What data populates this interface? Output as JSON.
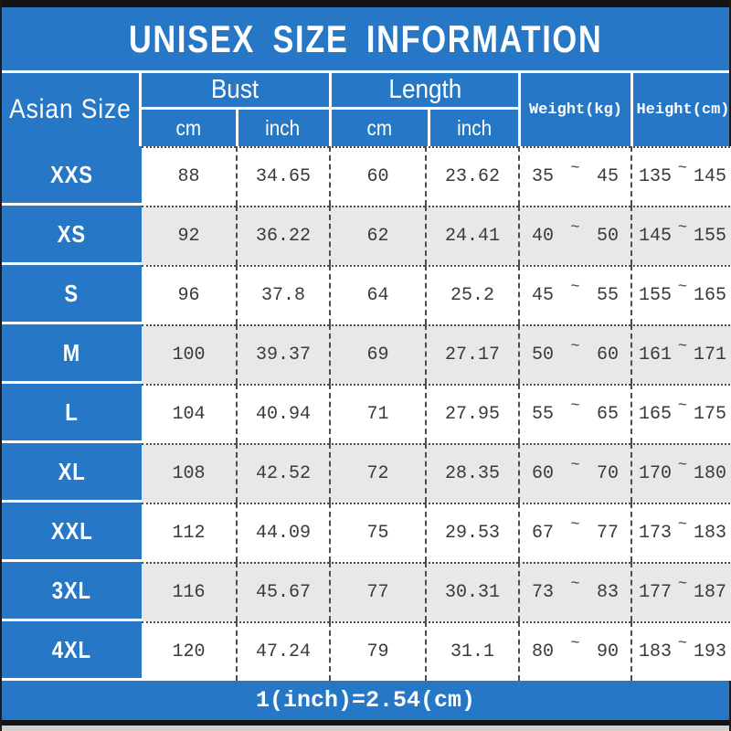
{
  "title": "UNISEX SIZE INFORMATION",
  "header": {
    "size_col": "Asian Size",
    "bust_label": "Bust",
    "length_label": "Length",
    "cm": "cm",
    "inch": "inch",
    "weight": "Weight(kg)",
    "height": "Height(cm)"
  },
  "tilde": "~",
  "rows": [
    {
      "size": "XXS",
      "bust_cm": "88",
      "bust_inch": "34.65",
      "length_cm": "60",
      "length_inch": "23.62",
      "weight_min": "35",
      "weight_max": "45",
      "height_min": "135",
      "height_max": "145"
    },
    {
      "size": "XS",
      "bust_cm": "92",
      "bust_inch": "36.22",
      "length_cm": "62",
      "length_inch": "24.41",
      "weight_min": "40",
      "weight_max": "50",
      "height_min": "145",
      "height_max": "155"
    },
    {
      "size": "S",
      "bust_cm": "96",
      "bust_inch": "37.8",
      "length_cm": "64",
      "length_inch": "25.2",
      "weight_min": "45",
      "weight_max": "55",
      "height_min": "155",
      "height_max": "165"
    },
    {
      "size": "M",
      "bust_cm": "100",
      "bust_inch": "39.37",
      "length_cm": "69",
      "length_inch": "27.17",
      "weight_min": "50",
      "weight_max": "60",
      "height_min": "161",
      "height_max": "171"
    },
    {
      "size": "L",
      "bust_cm": "104",
      "bust_inch": "40.94",
      "length_cm": "71",
      "length_inch": "27.95",
      "weight_min": "55",
      "weight_max": "65",
      "height_min": "165",
      "height_max": "175"
    },
    {
      "size": "XL",
      "bust_cm": "108",
      "bust_inch": "42.52",
      "length_cm": "72",
      "length_inch": "28.35",
      "weight_min": "60",
      "weight_max": "70",
      "height_min": "170",
      "height_max": "180"
    },
    {
      "size": "XXL",
      "bust_cm": "112",
      "bust_inch": "44.09",
      "length_cm": "75",
      "length_inch": "29.53",
      "weight_min": "67",
      "weight_max": "77",
      "height_min": "173",
      "height_max": "183"
    },
    {
      "size": "3XL",
      "bust_cm": "116",
      "bust_inch": "45.67",
      "length_cm": "77",
      "length_inch": "30.31",
      "weight_min": "73",
      "weight_max": "83",
      "height_min": "177",
      "height_max": "187"
    },
    {
      "size": "4XL",
      "bust_cm": "120",
      "bust_inch": "47.24",
      "length_cm": "79",
      "length_inch": "31.1",
      "weight_min": "80",
      "weight_max": "90",
      "height_min": "183",
      "height_max": "193"
    }
  ],
  "footer_note": "1(inch)=2.54(cm)",
  "colors": {
    "blue": "#2678c6",
    "row_alt": "#e8e8e8",
    "bar_black": "#141414",
    "data_text": "#3a3a3a",
    "white": "#ffffff"
  },
  "chart_data": {
    "type": "table",
    "title": "UNISEX SIZE INFORMATION",
    "columns": [
      "Asian Size",
      "Bust cm",
      "Bust inch",
      "Length cm",
      "Length inch",
      "Weight(kg)",
      "Height(cm)"
    ],
    "rows": [
      [
        "XXS",
        88,
        34.65,
        60,
        23.62,
        "35~45",
        "135~145"
      ],
      [
        "XS",
        92,
        36.22,
        62,
        24.41,
        "40~50",
        "145~155"
      ],
      [
        "S",
        96,
        37.8,
        64,
        25.2,
        "45~55",
        "155~165"
      ],
      [
        "M",
        100,
        39.37,
        69,
        27.17,
        "50~60",
        "161~171"
      ],
      [
        "L",
        104,
        40.94,
        71,
        27.95,
        "55~65",
        "165~175"
      ],
      [
        "XL",
        108,
        42.52,
        72,
        28.35,
        "60~70",
        "170~180"
      ],
      [
        "XXL",
        112,
        44.09,
        75,
        29.53,
        "67~77",
        "173~183"
      ],
      [
        "3XL",
        116,
        45.67,
        77,
        30.31,
        "73~83",
        "177~187"
      ],
      [
        "4XL",
        120,
        47.24,
        79,
        31.1,
        "80~90",
        "183~193"
      ]
    ],
    "note": "1(inch)=2.54(cm)",
    "layout": {
      "header_background": "#2678c6",
      "alternating_rows": true,
      "column_separators": "dashed",
      "row_separators": "dotted"
    }
  }
}
